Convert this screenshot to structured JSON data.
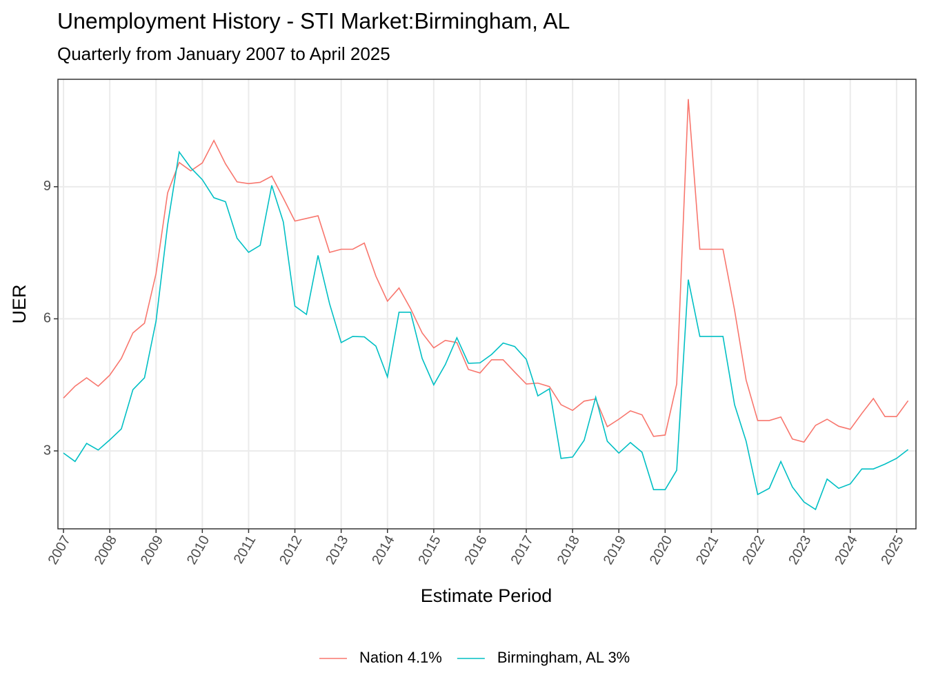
{
  "chart_data": {
    "type": "line",
    "title": "Unemployment History - STI Market:Birmingham, AL",
    "subtitle": "Quarterly from January 2007 to April 2025",
    "x_label": "Estimate Period",
    "y_label": "UER",
    "x": [
      2007,
      2007.25,
      2007.5,
      2007.75,
      2008,
      2008.25,
      2008.5,
      2008.75,
      2009,
      2009.25,
      2009.5,
      2009.75,
      2010,
      2010.25,
      2010.5,
      2010.75,
      2011,
      2011.25,
      2011.5,
      2011.75,
      2012,
      2012.25,
      2012.5,
      2012.75,
      2013,
      2013.25,
      2013.5,
      2013.75,
      2014,
      2014.25,
      2014.5,
      2014.75,
      2015,
      2015.25,
      2015.5,
      2015.75,
      2016,
      2016.25,
      2016.5,
      2016.75,
      2017,
      2017.25,
      2017.5,
      2017.75,
      2018,
      2018.25,
      2018.5,
      2018.75,
      2019,
      2019.25,
      2019.5,
      2019.75,
      2020,
      2020.25,
      2020.5,
      2020.75,
      2021,
      2021.25,
      2021.5,
      2021.75,
      2022,
      2022.25,
      2022.5,
      2022.75,
      2023,
      2023.25,
      2023.5,
      2023.75,
      2024,
      2024.25,
      2024.5,
      2024.75,
      2025,
      2025.25
    ],
    "series": [
      {
        "name": "Nation 4.1%",
        "color": "#F8766D",
        "values": [
          4.2,
          4.47,
          4.66,
          4.47,
          4.72,
          5.1,
          5.68,
          5.9,
          7.03,
          8.86,
          9.55,
          9.36,
          9.54,
          10.05,
          9.52,
          9.11,
          9.07,
          9.1,
          9.24,
          8.74,
          8.22,
          8.28,
          8.34,
          7.51,
          7.58,
          7.58,
          7.72,
          6.97,
          6.4,
          6.7,
          6.23,
          5.68,
          5.34,
          5.51,
          5.46,
          4.85,
          4.77,
          5.07,
          5.07,
          4.79,
          4.52,
          4.54,
          4.46,
          4.05,
          3.92,
          4.13,
          4.18,
          3.55,
          3.72,
          3.91,
          3.82,
          3.33,
          3.36,
          4.52,
          10.99,
          7.58,
          7.58,
          7.58,
          6.2,
          4.61,
          3.69,
          3.69,
          3.77,
          3.27,
          3.2,
          3.58,
          3.72,
          3.56,
          3.49,
          3.85,
          4.19,
          3.78,
          3.78,
          4.14
        ]
      },
      {
        "name": "Birmingham, AL 3%",
        "color": "#00BFC4",
        "values": [
          2.95,
          2.76,
          3.17,
          3.02,
          3.25,
          3.5,
          4.39,
          4.66,
          5.95,
          8.13,
          9.79,
          9.43,
          9.16,
          8.75,
          8.66,
          7.83,
          7.51,
          7.67,
          9.03,
          8.2,
          6.29,
          6.1,
          7.44,
          6.34,
          5.46,
          5.6,
          5.59,
          5.38,
          4.68,
          6.15,
          6.15,
          5.1,
          4.5,
          4.96,
          5.57,
          4.99,
          5.0,
          5.19,
          5.45,
          5.37,
          5.08,
          4.25,
          4.41,
          2.83,
          2.86,
          3.24,
          4.22,
          3.22,
          2.95,
          3.19,
          2.97,
          2.12,
          2.12,
          2.56,
          6.89,
          5.6,
          5.6,
          5.6,
          4.05,
          3.22,
          2.01,
          2.15,
          2.76,
          2.18,
          1.84,
          1.67,
          2.36,
          2.15,
          2.25,
          2.59,
          2.59,
          2.7,
          2.83,
          3.03
        ]
      }
    ],
    "xlim": [
      2006.88,
      2025.42
    ],
    "ylim": [
      1.23,
      11.44
    ],
    "xticks": [
      2007,
      2008,
      2009,
      2010,
      2011,
      2012,
      2013,
      2014,
      2015,
      2016,
      2017,
      2018,
      2019,
      2020,
      2021,
      2022,
      2023,
      2024,
      2025
    ],
    "yticks": [
      3,
      6,
      9
    ],
    "grid": true,
    "legend": "bottom"
  }
}
